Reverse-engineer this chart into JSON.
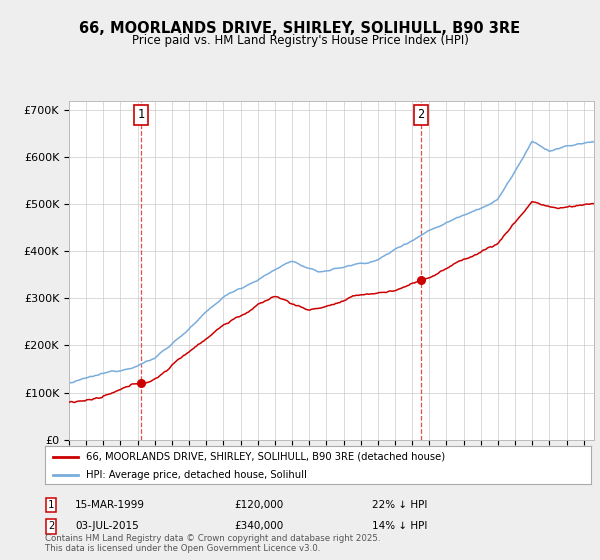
{
  "title": "66, MOORLANDS DRIVE, SHIRLEY, SOLIHULL, B90 3RE",
  "subtitle": "Price paid vs. HM Land Registry's House Price Index (HPI)",
  "red_label": "66, MOORLANDS DRIVE, SHIRLEY, SOLIHULL, B90 3RE (detached house)",
  "blue_label": "HPI: Average price, detached house, Solihull",
  "purchase1_date": "15-MAR-1999",
  "purchase1_price": 120000,
  "purchase1_pct": "22% ↓ HPI",
  "purchase2_date": "03-JUL-2015",
  "purchase2_price": 340000,
  "purchase2_pct": "14% ↓ HPI",
  "footnote": "Contains HM Land Registry data © Crown copyright and database right 2025.\nThis data is licensed under the Open Government Licence v3.0.",
  "background_color": "#eeeeee",
  "plot_background": "#ffffff",
  "red_color": "#cc0000",
  "blue_color": "#7aaddb",
  "grid_color": "#cccccc",
  "vline_color": "#e05050",
  "purchase1_x": 1999.21,
  "purchase2_x": 2015.51,
  "xmin": 1995.0,
  "xmax": 2025.6,
  "ylim_top": 720000,
  "ylim_bottom": 0,
  "title_fontsize": 10.5,
  "subtitle_fontsize": 8.5
}
